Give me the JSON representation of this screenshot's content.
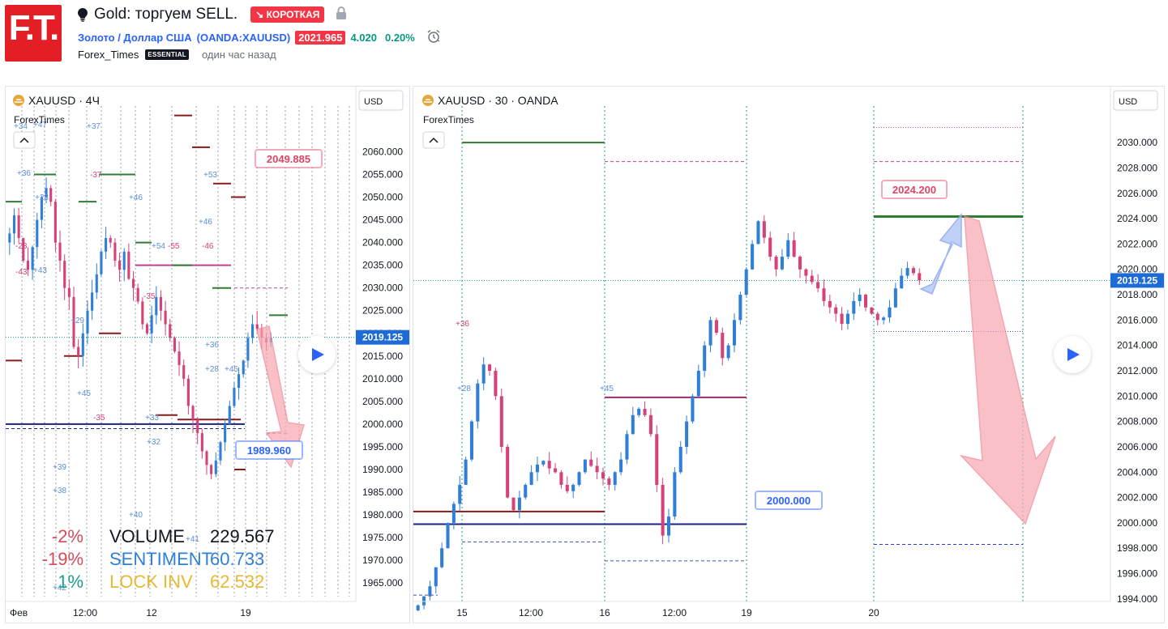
{
  "header": {
    "logo_text": "F.T.",
    "title": "Gold: торгуем SELL.",
    "badge": "↘ КОРОТКАЯ",
    "symbol_name": "Золото / Доллар США",
    "symbol_code_open": "(",
    "symbol_code": "OANDA:XAUUSD",
    "symbol_code_close": ")",
    "price": "2021.965",
    "change": "4.020",
    "change_pct": "0.20%",
    "author": "Forex_Times",
    "author_badge": "ESSENTIAL",
    "time_ago": "один час назад"
  },
  "colors": {
    "brand": "#e31e24",
    "up": "#2962ff",
    "down": "#d6417a",
    "short": "#f23645",
    "positive": "#089981",
    "price_tag": "#1e6bd6"
  },
  "chart_data": [
    {
      "type": "candlestick",
      "title": "XAUUSD · 4Ч",
      "subtitle": "ForexTimes",
      "currency": "USD",
      "ylim": [
        1962,
        2069
      ],
      "yticks": [
        "2060.000",
        "2055.000",
        "2050.000",
        "2045.000",
        "2040.000",
        "2035.000",
        "2030.000",
        "2025.000",
        "2020.000",
        "2015.000",
        "2010.000",
        "2005.000",
        "2000.000",
        "1995.000",
        "1990.000",
        "1985.000",
        "1980.000",
        "1975.000",
        "1970.000",
        "1965.000"
      ],
      "ytick_values": [
        2060,
        2055,
        2050,
        2045,
        2040,
        2035,
        2030,
        2025,
        2020,
        2015,
        2010,
        2005,
        2000,
        1995,
        1990,
        1985,
        1980,
        1975,
        1970,
        1965
      ],
      "xticks": [
        "Фев",
        "12:00",
        "12",
        "19"
      ],
      "last_price": "2019.125",
      "last_value": 2019.125,
      "close_path": [
        2042,
        2046,
        2041,
        2036,
        2034,
        2039,
        2045,
        2050,
        2052,
        2049,
        2040,
        2036,
        2030,
        2028,
        2017,
        2015,
        2020,
        2025,
        2029,
        2033,
        2038,
        2041,
        2040,
        2036,
        2034,
        2038,
        2032,
        2030,
        2027,
        2022,
        2020,
        2024,
        2028,
        2025,
        2022,
        2019,
        2016,
        2013,
        2010,
        2004,
        2001,
        1998,
        1994,
        1991,
        1989,
        1992,
        1996,
        2000,
        2004,
        2008,
        2011,
        2014,
        2019,
        2022,
        2021,
        2019,
        2018,
        2019
      ],
      "callouts": [
        {
          "label": "2049.885",
          "value": 2049.885,
          "color": "#e04565"
        },
        {
          "label": "1989.960",
          "value": 1989.96,
          "color": "#2962ff"
        }
      ],
      "markers": [
        "+34",
        "+47",
        "+36",
        "+28",
        "-28",
        "+43",
        "-43",
        "+29",
        "+39",
        "+38",
        "+42",
        "+37",
        "-37",
        "+46",
        "+45",
        "-35",
        "+33",
        "+32",
        "+40",
        "+41",
        "+54",
        "-55",
        "-46",
        "+53",
        "+36",
        "+28",
        "+45",
        "+46",
        "-35"
      ],
      "stats": [
        {
          "pct": "-2%",
          "label": "VOLUME",
          "value": "229.567",
          "pct_color": "#d84a5a",
          "text_color": "#131722"
        },
        {
          "pct": "-19%",
          "label": "SENTIMENT",
          "value": "60.733",
          "pct_color": "#d84a5a",
          "text_color": "#2f7fd8"
        },
        {
          "pct": "1%",
          "label": "LOCK INV",
          "value": "62.532",
          "pct_color": "#1a9e8a",
          "text_color": "#e8b830"
        }
      ]
    },
    {
      "type": "candlestick",
      "title": "XAUUSD · 30 · OANDA",
      "subtitle": "ForexTimes",
      "currency": "USD",
      "ylim": [
        1993.8,
        2032.5
      ],
      "yticks": [
        "2030.000",
        "2028.000",
        "2026.000",
        "2024.000",
        "2022.000",
        "2020.000",
        "2018.000",
        "2016.000",
        "2014.000",
        "2012.000",
        "2010.000",
        "2008.000",
        "2006.000",
        "2004.000",
        "2002.000",
        "2000.000",
        "1998.000",
        "1996.000",
        "1994.000"
      ],
      "ytick_values": [
        2030,
        2028,
        2026,
        2024,
        2022,
        2020,
        2018,
        2016,
        2014,
        2012,
        2010,
        2008,
        2006,
        2004,
        2002,
        2000,
        1998,
        1996,
        1994
      ],
      "xticks": [
        "15",
        "12:00",
        "16",
        "12:00",
        "19",
        "20"
      ],
      "last_price": "2019.125",
      "last_value": 2019.125,
      "close_path": [
        1993.5,
        1994.2,
        1995,
        1996.5,
        1998,
        2000,
        2001.5,
        2003,
        2005,
        2008,
        2011,
        2012.5,
        2012,
        2010,
        2006,
        2002,
        2001,
        2002,
        2003,
        2004,
        2004.6,
        2004.9,
        2004.3,
        2004,
        2003,
        2002.5,
        2003,
        2004,
        2005,
        2004.5,
        2004,
        2003.5,
        2003,
        2004,
        2005,
        2007,
        2008.5,
        2009,
        2008.5,
        2007,
        2003,
        1999,
        2000.5,
        2004,
        2006,
        2008,
        2010,
        2012,
        2014,
        2016,
        2015,
        2013,
        2014,
        2016,
        2018,
        2020,
        2022,
        2023.8,
        2022.5,
        2021,
        2020,
        2021,
        2022.3,
        2021,
        2020,
        2019.5,
        2019,
        2018.5,
        2017.5,
        2017,
        2016.5,
        2015.7,
        2016.5,
        2017.5,
        2018,
        2017,
        2016.5,
        2016,
        2016.2,
        2017,
        2018.5,
        2019.5,
        2020.1,
        2019.7,
        2019.125
      ],
      "callouts": [
        {
          "label": "2024.200",
          "value": 2024.2,
          "color": "#e04565"
        },
        {
          "label": "2000.000",
          "value": 2000,
          "color": "#2962ff"
        }
      ],
      "markers": [
        "+36",
        "+28",
        "+45"
      ]
    }
  ]
}
